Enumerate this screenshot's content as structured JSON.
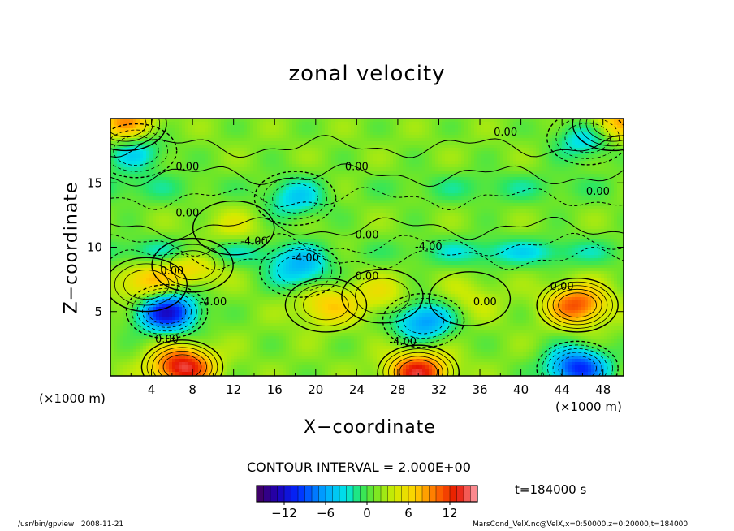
{
  "page": {
    "program": "/usr/bin/gpview",
    "date": "2008-11-21",
    "file_info": "MarsCond_VelX.nc@VelX,x=0:50000,z=0:20000,t=184000",
    "time_label": "t=184000 s",
    "contour_interval": "CONTOUR INTERVAL = 2.000E+00"
  },
  "chart_data": {
    "type": "heatmap",
    "title": "zonal velocity",
    "xlabel": "X−coordinate",
    "ylabel": "Z−coordinate",
    "x_unit": "(×1000 m)",
    "x_ticks": [
      "4",
      "8",
      "12",
      "16",
      "20",
      "24",
      "28",
      "32",
      "36",
      "40",
      "44",
      "48"
    ],
    "y_ticks": [
      "5",
      "10",
      "15"
    ],
    "xlim": [
      0,
      50
    ],
    "ylim": [
      0,
      20
    ],
    "colorbar": {
      "min": -16,
      "max": 16,
      "ticks": [
        "−12",
        "−6",
        "0",
        "6",
        "12"
      ],
      "tick_values": [
        -12,
        -6,
        0,
        6,
        12
      ]
    },
    "contour_labels": [
      {
        "text": "0.00",
        "x": 38.5,
        "z": 19.0
      },
      {
        "text": "0.00",
        "x": 7.5,
        "z": 16.3
      },
      {
        "text": "0.00",
        "x": 24.0,
        "z": 16.3
      },
      {
        "text": "0.00",
        "x": 47.5,
        "z": 14.4
      },
      {
        "text": "0.00",
        "x": 7.5,
        "z": 12.7
      },
      {
        "text": "-4.00",
        "x": 14.0,
        "z": 10.5
      },
      {
        "text": "0.00",
        "x": 25.0,
        "z": 11.0
      },
      {
        "text": "-4.00",
        "x": 31.0,
        "z": 10.1
      },
      {
        "text": "-4.00",
        "x": 19.0,
        "z": 9.2
      },
      {
        "text": "0.00",
        "x": 6.0,
        "z": 8.2
      },
      {
        "text": "0.00",
        "x": 25.0,
        "z": 7.8
      },
      {
        "text": "-4.00",
        "x": 10.0,
        "z": 5.8
      },
      {
        "text": "0.00",
        "x": 36.5,
        "z": 5.8
      },
      {
        "text": "0.00",
        "x": 44.0,
        "z": 7.0
      },
      {
        "text": "0.00",
        "x": 5.5,
        "z": 2.9
      },
      {
        "text": "-4.00",
        "x": 28.5,
        "z": 2.7
      }
    ],
    "features": [
      {
        "kind": "min",
        "x": 5.5,
        "z": 5.0,
        "value": -12
      },
      {
        "kind": "min",
        "x": 18.5,
        "z": 8.2,
        "value": -5
      },
      {
        "kind": "min",
        "x": 30.5,
        "z": 4.3,
        "value": -7
      },
      {
        "kind": "min",
        "x": 45.5,
        "z": 0.6,
        "value": -10
      },
      {
        "kind": "min",
        "x": 46.5,
        "z": 18.5,
        "value": -5
      },
      {
        "kind": "min",
        "x": 2.5,
        "z": 17.5,
        "value": -4
      },
      {
        "kind": "min",
        "x": 18.0,
        "z": 13.8,
        "value": -4
      },
      {
        "kind": "max",
        "x": 7.0,
        "z": 0.7,
        "value": 14
      },
      {
        "kind": "max",
        "x": 30.0,
        "z": 0.3,
        "value": 13
      },
      {
        "kind": "max",
        "x": 45.5,
        "z": 5.5,
        "value": 11
      },
      {
        "kind": "max",
        "x": 21.0,
        "z": 5.5,
        "value": 7
      },
      {
        "kind": "max",
        "x": 26.5,
        "z": 6.2,
        "value": 5
      },
      {
        "kind": "max",
        "x": 3.5,
        "z": 7.1,
        "value": 8
      },
      {
        "kind": "max",
        "x": 8.0,
        "z": 8.6,
        "value": 7
      },
      {
        "kind": "max",
        "x": 1.5,
        "z": 19.6,
        "value": 9
      },
      {
        "kind": "max",
        "x": 49.0,
        "z": 19.6,
        "value": 9
      },
      {
        "kind": "max",
        "x": 12.0,
        "z": 11.5,
        "value": 4
      },
      {
        "kind": "max",
        "x": 35.0,
        "z": 6.0,
        "value": 4
      }
    ]
  }
}
